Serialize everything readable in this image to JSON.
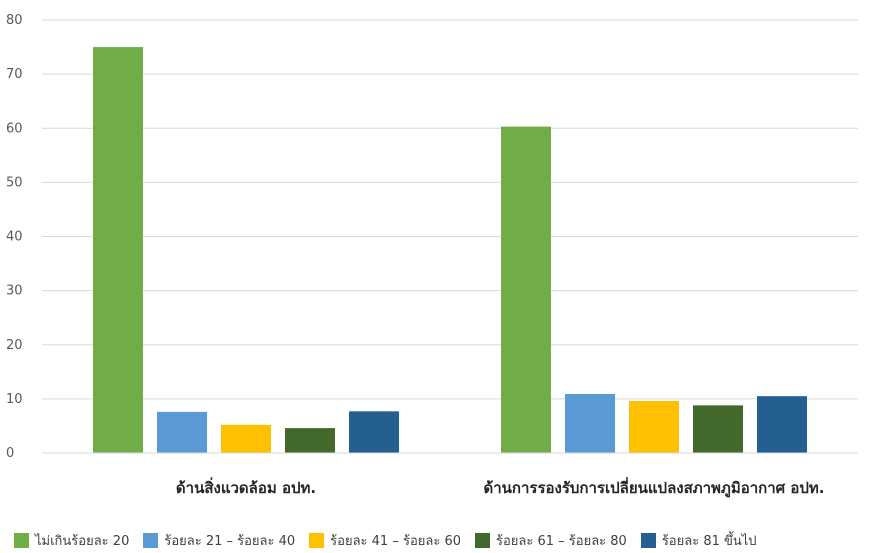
{
  "chart_data": {
    "type": "bar",
    "categories": [
      "ด้านสิ่งแวดล้อม อปท.",
      "ด้านการรองรับการเปลี่ยนแปลงสภาพภูมิอากาศ อปท."
    ],
    "series": [
      {
        "name": "ไม่เกินร้อยละ 20",
        "color": "#70ad47",
        "values": [
          75,
          60.3
        ]
      },
      {
        "name": "ร้อยละ 21 – ร้อยละ 40",
        "color": "#5b9bd5",
        "values": [
          7.6,
          10.9
        ]
      },
      {
        "name": "ร้อยละ 41 – ร้อยละ 60",
        "color": "#ffc000",
        "values": [
          5.2,
          9.6
        ]
      },
      {
        "name": "ร้อยละ 61 – ร้อยละ 80",
        "color": "#43682b",
        "values": [
          4.6,
          8.8
        ]
      },
      {
        "name": "ร้อยละ 81 ขึ้นไป",
        "color": "#255e91",
        "values": [
          7.7,
          10.5
        ]
      }
    ],
    "ylim": [
      0,
      80
    ],
    "yticks": [
      "0",
      "10",
      "20",
      "30",
      "40",
      "50",
      "60",
      "70",
      "80"
    ],
    "grid": true,
    "legend_position": "bottom",
    "title": "",
    "xlabel": "",
    "ylabel": ""
  }
}
